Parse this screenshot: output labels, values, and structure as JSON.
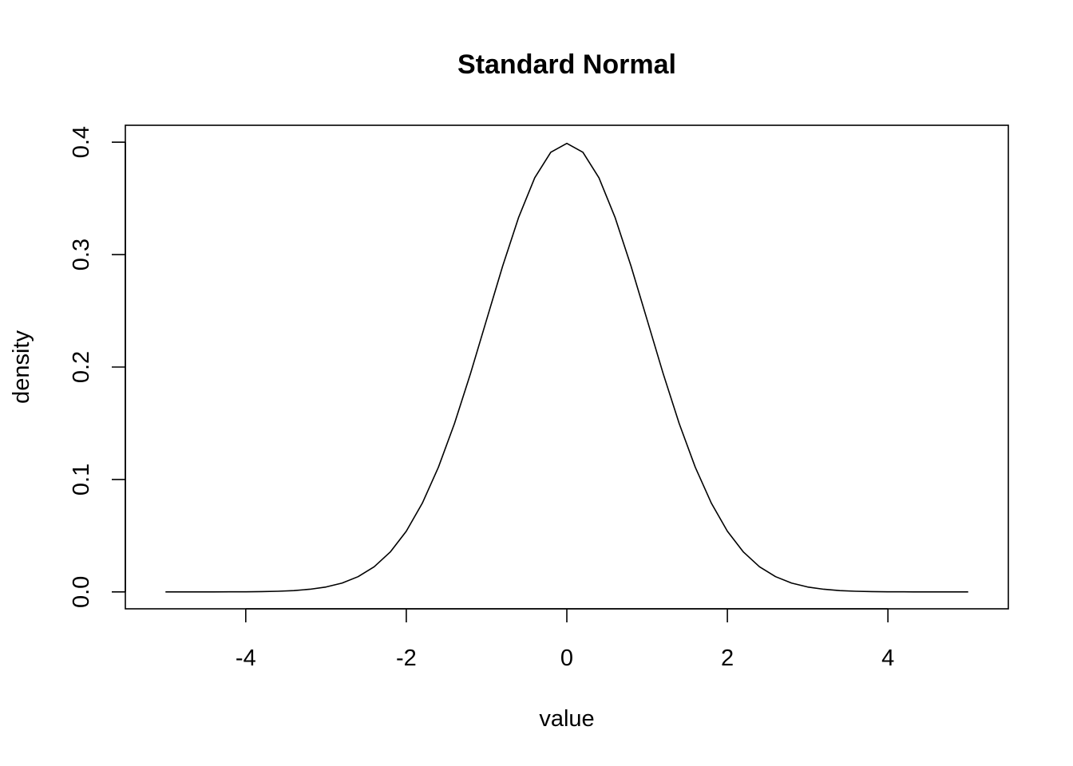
{
  "chart_data": {
    "type": "line",
    "title": "Standard Normal",
    "xlabel": "value",
    "ylabel": "density",
    "xlim": [
      -5.5,
      5.5
    ],
    "ylim": [
      -0.015,
      0.415
    ],
    "xticks": [
      -4,
      -2,
      0,
      2,
      4
    ],
    "xtick_labels": [
      "-4",
      "-2",
      "0",
      "2",
      "4"
    ],
    "yticks": [
      0.0,
      0.1,
      0.2,
      0.3,
      0.4
    ],
    "ytick_labels": [
      "0.0",
      "0.1",
      "0.2",
      "0.3",
      "0.4"
    ],
    "grid": false,
    "series": [
      {
        "color": "#000000",
        "x": [
          -5.0,
          -4.8,
          -4.6,
          -4.4,
          -4.2,
          -4.0,
          -3.8,
          -3.6,
          -3.4,
          -3.2,
          -3.0,
          -2.8,
          -2.6,
          -2.4,
          -2.2,
          -2.0,
          -1.8,
          -1.6,
          -1.4,
          -1.2,
          -1.0,
          -0.8,
          -0.6,
          -0.4,
          -0.2,
          0.0,
          0.2,
          0.4,
          0.6,
          0.8,
          1.0,
          1.2,
          1.4,
          1.6,
          1.8,
          2.0,
          2.2,
          2.4,
          2.6,
          2.8,
          3.0,
          3.2,
          3.4,
          3.6,
          3.8,
          4.0,
          4.2,
          4.4,
          4.6,
          4.8,
          5.0
        ],
        "y": [
          0.0,
          0.0,
          0.0,
          0.0,
          0.0001,
          0.0001,
          0.0003,
          0.0006,
          0.0012,
          0.0024,
          0.0044,
          0.0079,
          0.0136,
          0.0224,
          0.0355,
          0.054,
          0.079,
          0.1109,
          0.1497,
          0.1942,
          0.242,
          0.2897,
          0.3332,
          0.3683,
          0.391,
          0.3989,
          0.391,
          0.3683,
          0.3332,
          0.2897,
          0.242,
          0.1942,
          0.1497,
          0.1109,
          0.079,
          0.054,
          0.0355,
          0.0224,
          0.0136,
          0.0079,
          0.0044,
          0.0024,
          0.0012,
          0.0006,
          0.0003,
          0.0001,
          0.0001,
          0.0,
          0.0,
          0.0,
          0.0
        ]
      }
    ]
  }
}
